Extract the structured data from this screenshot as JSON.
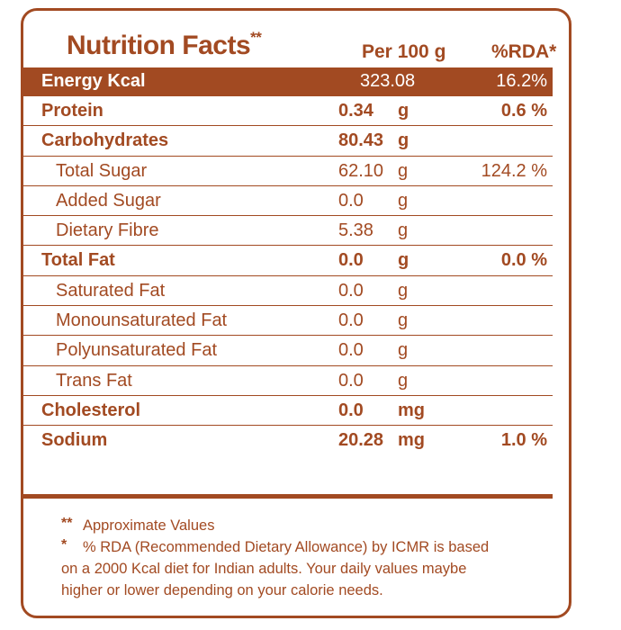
{
  "header": {
    "title": "Nutrition Facts",
    "title_mark": "**",
    "per_label": "Per 100 g",
    "rda_label": "%RDA*"
  },
  "energy": {
    "label": "Energy Kcal",
    "value": "323.08",
    "rda": "16.2%"
  },
  "rows": [
    {
      "name": "Protein",
      "value": "0.34",
      "unit": "g",
      "rda": "0.6 %"
    },
    {
      "name": "Carbohydrates",
      "value": "80.43",
      "unit": "g",
      "rda": ""
    },
    {
      "name": "Total Sugar",
      "value": "62.10",
      "unit": "g",
      "rda": "124.2 %"
    },
    {
      "name": "Added Sugar",
      "value": "0.0",
      "unit": "g",
      "rda": ""
    },
    {
      "name": "Dietary Fibre",
      "value": "5.38",
      "unit": "g",
      "rda": ""
    },
    {
      "name": "Total Fat",
      "value": "0.0",
      "unit": "g",
      "rda": "0.0 %"
    },
    {
      "name": "Saturated Fat",
      "value": "0.0",
      "unit": "g",
      "rda": ""
    },
    {
      "name": "Monounsaturated Fat",
      "value": "0.0",
      "unit": "g",
      "rda": ""
    },
    {
      "name": "Polyunsaturated Fat",
      "value": "0.0",
      "unit": "g",
      "rda": ""
    },
    {
      "name": "Trans Fat",
      "value": "0.0",
      "unit": "g",
      "rda": ""
    },
    {
      "name": "Cholesterol",
      "value": "0.0",
      "unit": "mg",
      "rda": ""
    },
    {
      "name": "Sodium",
      "value": "20.28",
      "unit": "mg",
      "rda": "1.0 %"
    }
  ],
  "footnotes": {
    "approx_mark": "**",
    "approx_text": "Approximate Values",
    "rda_mark": "*",
    "rda_line1": "% RDA (Recommended Dietary Allowance) by ICMR is based",
    "rda_line2": "on a 2000 Kcal diet for Indian adults. Your daily values maybe",
    "rda_line3": "higher or lower depending on your calorie needs."
  },
  "colors": {
    "brand": "#a24a22",
    "background": "#ffffff"
  }
}
